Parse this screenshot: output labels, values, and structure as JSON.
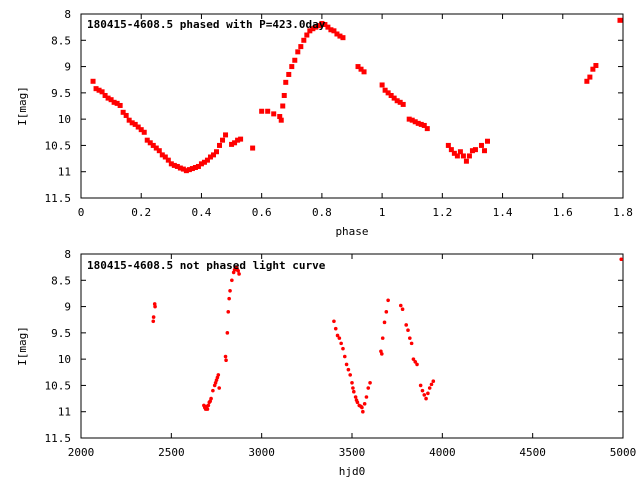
{
  "chart_data": [
    {
      "type": "scatter",
      "title": "180415-4608.5 phased with P=423.0day",
      "xlabel": "phase",
      "ylabel": "I[mag]",
      "xlim": [
        0,
        1.8
      ],
      "ylim": [
        8,
        11.5
      ],
      "y_inverted": true,
      "x_ticks": [
        "0",
        "0.2",
        "0.4",
        "0.6",
        "0.8",
        "1",
        "1.2",
        "1.4",
        "1.6",
        "1.8"
      ],
      "y_ticks": [
        "8",
        "8.5",
        "9",
        "9.5",
        "10",
        "10.5",
        "11",
        "11.5"
      ],
      "marker_color": "#ff0000",
      "grid": false,
      "points": [
        [
          0.04,
          9.28
        ],
        [
          0.05,
          9.42
        ],
        [
          0.06,
          9.45
        ],
        [
          0.07,
          9.48
        ],
        [
          0.08,
          9.55
        ],
        [
          0.09,
          9.6
        ],
        [
          0.1,
          9.63
        ],
        [
          0.11,
          9.68
        ],
        [
          0.12,
          9.7
        ],
        [
          0.13,
          9.74
        ],
        [
          0.14,
          9.87
        ],
        [
          0.15,
          9.93
        ],
        [
          0.16,
          10.02
        ],
        [
          0.17,
          10.07
        ],
        [
          0.18,
          10.1
        ],
        [
          0.19,
          10.15
        ],
        [
          0.2,
          10.2
        ],
        [
          0.21,
          10.25
        ],
        [
          0.22,
          10.4
        ],
        [
          0.23,
          10.45
        ],
        [
          0.24,
          10.5
        ],
        [
          0.25,
          10.55
        ],
        [
          0.26,
          10.6
        ],
        [
          0.27,
          10.68
        ],
        [
          0.28,
          10.72
        ],
        [
          0.29,
          10.78
        ],
        [
          0.3,
          10.85
        ],
        [
          0.31,
          10.88
        ],
        [
          0.32,
          10.9
        ],
        [
          0.33,
          10.93
        ],
        [
          0.34,
          10.95
        ],
        [
          0.35,
          10.98
        ],
        [
          0.36,
          10.96
        ],
        [
          0.37,
          10.94
        ],
        [
          0.38,
          10.92
        ],
        [
          0.39,
          10.9
        ],
        [
          0.4,
          10.85
        ],
        [
          0.41,
          10.82
        ],
        [
          0.42,
          10.78
        ],
        [
          0.43,
          10.72
        ],
        [
          0.44,
          10.68
        ],
        [
          0.45,
          10.62
        ],
        [
          0.46,
          10.5
        ],
        [
          0.47,
          10.4
        ],
        [
          0.48,
          10.3
        ],
        [
          0.5,
          10.48
        ],
        [
          0.51,
          10.45
        ],
        [
          0.52,
          10.4
        ],
        [
          0.53,
          10.38
        ],
        [
          0.57,
          10.55
        ],
        [
          0.6,
          9.85
        ],
        [
          0.62,
          9.85
        ],
        [
          0.64,
          9.9
        ],
        [
          0.66,
          9.95
        ],
        [
          0.665,
          10.02
        ],
        [
          0.67,
          9.75
        ],
        [
          0.675,
          9.55
        ],
        [
          0.68,
          9.3
        ],
        [
          0.69,
          9.15
        ],
        [
          0.7,
          9.0
        ],
        [
          0.71,
          8.88
        ],
        [
          0.72,
          8.72
        ],
        [
          0.73,
          8.62
        ],
        [
          0.74,
          8.5
        ],
        [
          0.75,
          8.4
        ],
        [
          0.76,
          8.32
        ],
        [
          0.77,
          8.28
        ],
        [
          0.78,
          8.25
        ],
        [
          0.79,
          8.22
        ],
        [
          0.8,
          8.18
        ],
        [
          0.81,
          8.2
        ],
        [
          0.82,
          8.25
        ],
        [
          0.83,
          8.3
        ],
        [
          0.84,
          8.32
        ],
        [
          0.85,
          8.38
        ],
        [
          0.86,
          8.42
        ],
        [
          0.87,
          8.45
        ],
        [
          0.92,
          9.0
        ],
        [
          0.93,
          9.05
        ],
        [
          0.94,
          9.1
        ],
        [
          1.0,
          9.35
        ],
        [
          1.01,
          9.45
        ],
        [
          1.02,
          9.5
        ],
        [
          1.03,
          9.55
        ],
        [
          1.04,
          9.6
        ],
        [
          1.05,
          9.65
        ],
        [
          1.06,
          9.68
        ],
        [
          1.07,
          9.72
        ],
        [
          1.09,
          10.0
        ],
        [
          1.1,
          10.02
        ],
        [
          1.11,
          10.05
        ],
        [
          1.12,
          10.08
        ],
        [
          1.13,
          10.1
        ],
        [
          1.14,
          10.12
        ],
        [
          1.15,
          10.18
        ],
        [
          1.22,
          10.5
        ],
        [
          1.23,
          10.58
        ],
        [
          1.24,
          10.65
        ],
        [
          1.25,
          10.7
        ],
        [
          1.26,
          10.62
        ],
        [
          1.27,
          10.7
        ],
        [
          1.28,
          10.8
        ],
        [
          1.29,
          10.7
        ],
        [
          1.3,
          10.6
        ],
        [
          1.31,
          10.58
        ],
        [
          1.33,
          10.5
        ],
        [
          1.34,
          10.6
        ],
        [
          1.35,
          10.42
        ],
        [
          1.68,
          9.28
        ],
        [
          1.69,
          9.2
        ],
        [
          1.7,
          9.05
        ],
        [
          1.71,
          8.98
        ],
        [
          1.79,
          8.12
        ]
      ]
    },
    {
      "type": "scatter",
      "title": "180415-4608.5 not phased light curve",
      "xlabel": "hjd0",
      "ylabel": "I[mag]",
      "xlim": [
        2000,
        5000
      ],
      "ylim": [
        8,
        11.5
      ],
      "y_inverted": true,
      "x_ticks": [
        "2000",
        "2500",
        "3000",
        "3500",
        "4000",
        "4500",
        "5000"
      ],
      "y_ticks": [
        "8",
        "8.5",
        "9",
        "9.5",
        "10",
        "10.5",
        "11",
        "11.5"
      ],
      "marker_color": "#ff0000",
      "grid": false,
      "points": [
        [
          2400,
          9.28
        ],
        [
          2402,
          9.2
        ],
        [
          2408,
          8.95
        ],
        [
          2410,
          9.0
        ],
        [
          2680,
          10.88
        ],
        [
          2685,
          10.92
        ],
        [
          2690,
          10.95
        ],
        [
          2695,
          10.9
        ],
        [
          2700,
          10.95
        ],
        [
          2705,
          10.88
        ],
        [
          2710,
          10.82
        ],
        [
          2715,
          10.8
        ],
        [
          2720,
          10.75
        ],
        [
          2730,
          10.6
        ],
        [
          2740,
          10.5
        ],
        [
          2745,
          10.45
        ],
        [
          2750,
          10.4
        ],
        [
          2755,
          10.35
        ],
        [
          2760,
          10.3
        ],
        [
          2765,
          10.55
        ],
        [
          2800,
          9.95
        ],
        [
          2803,
          10.02
        ],
        [
          2810,
          9.5
        ],
        [
          2815,
          9.1
        ],
        [
          2820,
          8.85
        ],
        [
          2825,
          8.7
        ],
        [
          2835,
          8.5
        ],
        [
          2845,
          8.35
        ],
        [
          2850,
          8.3
        ],
        [
          2855,
          8.28
        ],
        [
          2860,
          8.25
        ],
        [
          2865,
          8.3
        ],
        [
          2870,
          8.32
        ],
        [
          2875,
          8.38
        ],
        [
          3400,
          9.28
        ],
        [
          3410,
          9.42
        ],
        [
          3420,
          9.55
        ],
        [
          3430,
          9.6
        ],
        [
          3440,
          9.7
        ],
        [
          3450,
          9.8
        ],
        [
          3460,
          9.95
        ],
        [
          3470,
          10.1
        ],
        [
          3480,
          10.2
        ],
        [
          3490,
          10.3
        ],
        [
          3500,
          10.45
        ],
        [
          3505,
          10.55
        ],
        [
          3510,
          10.62
        ],
        [
          3520,
          10.72
        ],
        [
          3525,
          10.78
        ],
        [
          3530,
          10.82
        ],
        [
          3540,
          10.88
        ],
        [
          3550,
          10.9
        ],
        [
          3555,
          10.92
        ],
        [
          3560,
          11.0
        ],
        [
          3570,
          10.85
        ],
        [
          3580,
          10.72
        ],
        [
          3590,
          10.55
        ],
        [
          3600,
          10.45
        ],
        [
          3660,
          9.85
        ],
        [
          3665,
          9.9
        ],
        [
          3670,
          9.6
        ],
        [
          3680,
          9.3
        ],
        [
          3690,
          9.1
        ],
        [
          3700,
          8.88
        ],
        [
          3770,
          8.98
        ],
        [
          3780,
          9.05
        ],
        [
          3800,
          9.35
        ],
        [
          3810,
          9.45
        ],
        [
          3820,
          9.6
        ],
        [
          3830,
          9.7
        ],
        [
          3840,
          10.0
        ],
        [
          3850,
          10.05
        ],
        [
          3860,
          10.1
        ],
        [
          3880,
          10.5
        ],
        [
          3890,
          10.6
        ],
        [
          3900,
          10.68
        ],
        [
          3910,
          10.75
        ],
        [
          3920,
          10.65
        ],
        [
          3930,
          10.55
        ],
        [
          3940,
          10.48
        ],
        [
          3950,
          10.42
        ],
        [
          4990,
          8.1
        ]
      ]
    }
  ]
}
